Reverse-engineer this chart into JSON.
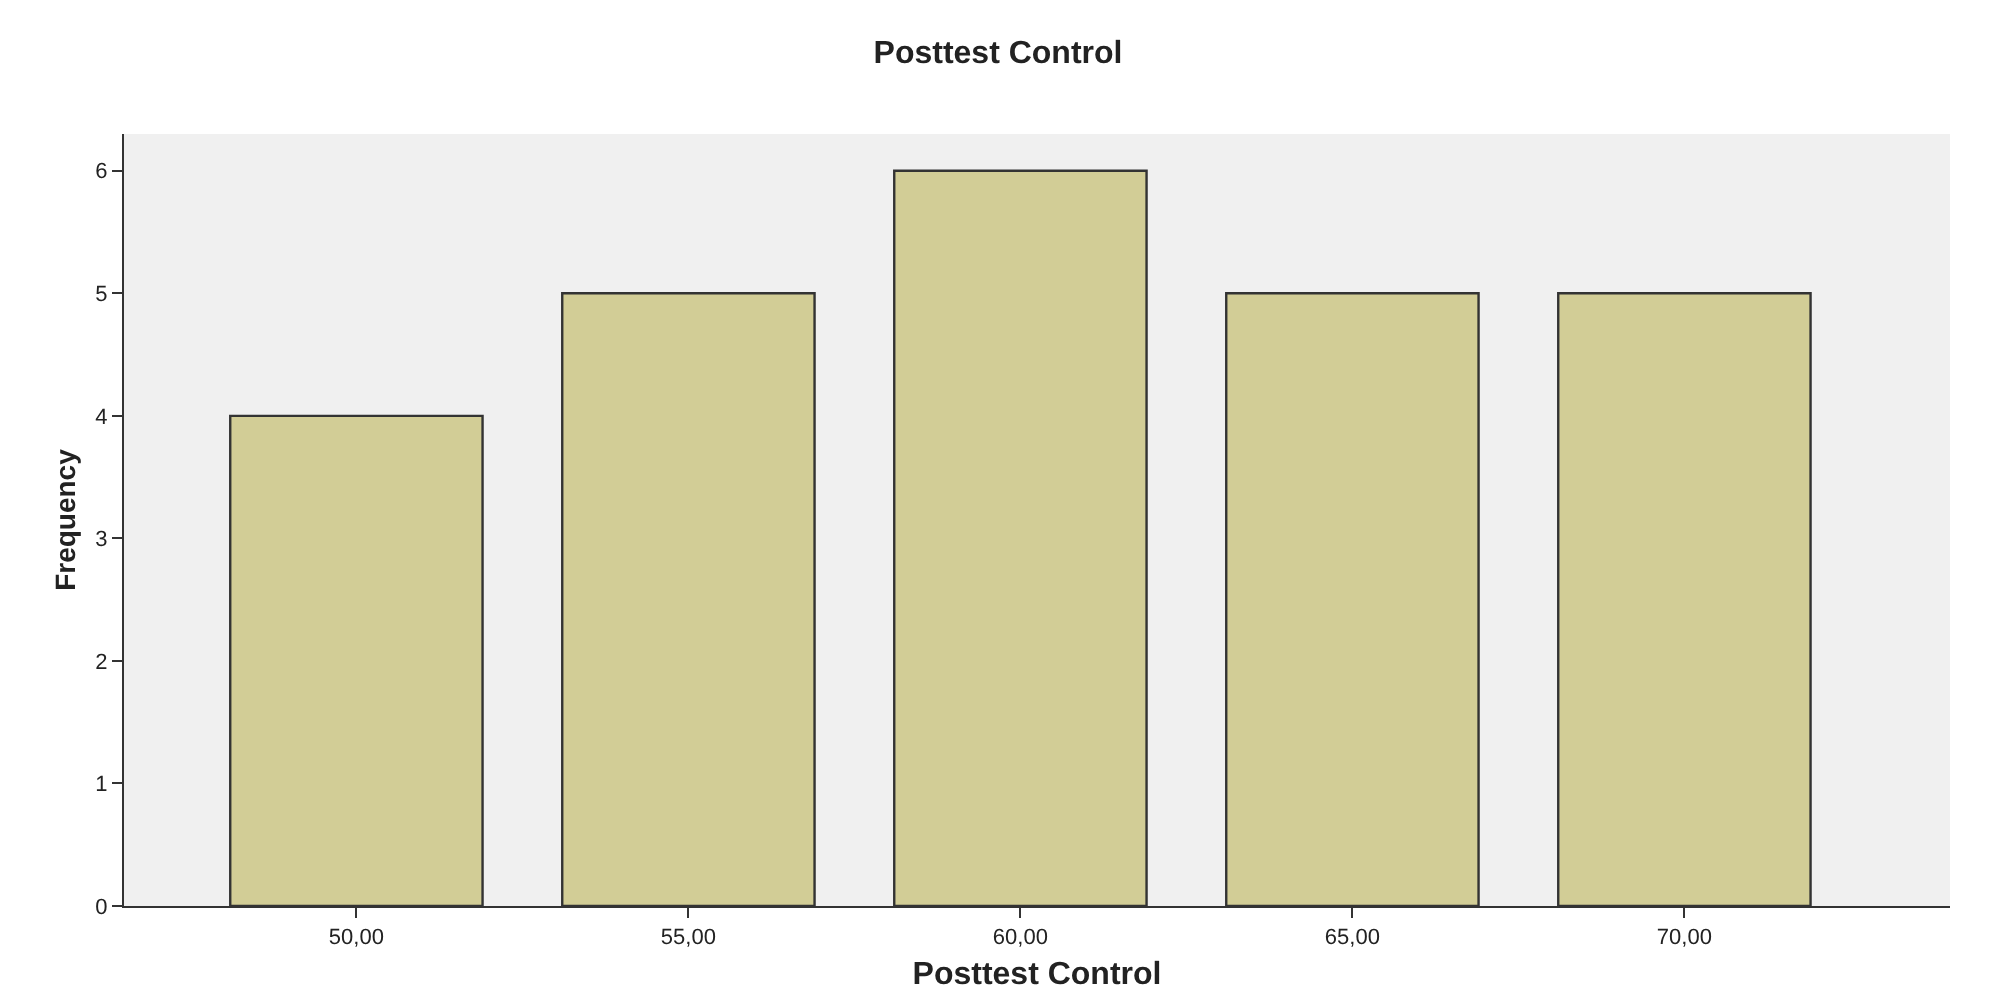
{
  "chart_data": {
    "type": "bar",
    "title": "Posttest Control",
    "xlabel": "Posttest Control",
    "ylabel": "Frequency",
    "categories": [
      "50,00",
      "55,00",
      "60,00",
      "65,00",
      "70,00"
    ],
    "values": [
      4,
      5,
      6,
      5,
      5
    ],
    "color": "#d2cd96",
    "ylim": [
      0,
      6.3
    ],
    "yticks": [
      0,
      1,
      2,
      3,
      4,
      5,
      6
    ],
    "grid": false,
    "legend": false
  }
}
